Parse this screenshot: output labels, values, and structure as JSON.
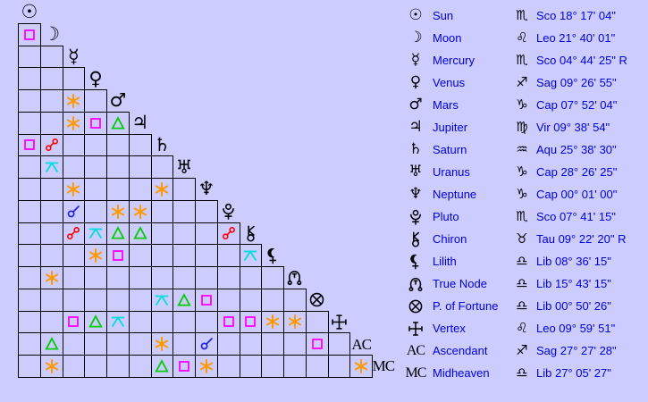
{
  "colors": {
    "background": "#ccccff",
    "grid_line": "#000000",
    "text_blue": "#0000dd",
    "glyph_black": "#000000"
  },
  "aspect_colors": {
    "conjunction": "#2222e6",
    "sextile": "#ff9900",
    "square": "#ff00ff",
    "trine": "#00cc00",
    "opposition": "#ff0000",
    "quincunx": "#00dddd"
  },
  "aspect_grid": {
    "rows": [
      {
        "planet": "Sun",
        "glyph": "sun",
        "cells": []
      },
      {
        "planet": "Moon",
        "glyph": "moon",
        "cells": [
          "square"
        ]
      },
      {
        "planet": "Mercury",
        "glyph": "mercury",
        "cells": [
          null,
          null
        ]
      },
      {
        "planet": "Venus",
        "glyph": "venus",
        "cells": [
          null,
          null,
          null
        ]
      },
      {
        "planet": "Mars",
        "glyph": "mars",
        "cells": [
          null,
          null,
          "sextile",
          null
        ]
      },
      {
        "planet": "Jupiter",
        "glyph": "jupiter",
        "cells": [
          null,
          null,
          "sextile",
          "square",
          "trine"
        ]
      },
      {
        "planet": "Saturn",
        "glyph": "saturn",
        "cells": [
          "square",
          "opposition",
          null,
          null,
          null,
          null
        ]
      },
      {
        "planet": "Uranus",
        "glyph": "uranus",
        "cells": [
          null,
          "quincunx",
          null,
          null,
          null,
          null,
          null
        ]
      },
      {
        "planet": "Neptune",
        "glyph": "neptune",
        "cells": [
          null,
          null,
          "sextile",
          null,
          null,
          null,
          "sextile",
          null
        ]
      },
      {
        "planet": "Pluto",
        "glyph": "pluto",
        "cells": [
          null,
          null,
          "conjunction",
          null,
          "sextile",
          "sextile",
          null,
          null,
          null
        ]
      },
      {
        "planet": "Chiron",
        "glyph": "chiron",
        "cells": [
          null,
          null,
          "opposition",
          "quincunx",
          "trine",
          "trine",
          null,
          null,
          null,
          "opposition"
        ]
      },
      {
        "planet": "Lilith",
        "glyph": "lilith",
        "cells": [
          null,
          null,
          null,
          "sextile",
          "square",
          null,
          null,
          null,
          null,
          null,
          "quincunx"
        ]
      },
      {
        "planet": "True Node",
        "glyph": "truenode",
        "cells": [
          null,
          "sextile",
          null,
          null,
          null,
          null,
          null,
          null,
          null,
          null,
          null,
          null
        ]
      },
      {
        "planet": "P. of Fortune",
        "glyph": "pof",
        "cells": [
          null,
          null,
          null,
          null,
          null,
          null,
          "quincunx",
          "trine",
          "square",
          null,
          null,
          null,
          null
        ]
      },
      {
        "planet": "Vertex",
        "glyph": "vertex",
        "cells": [
          null,
          null,
          "square",
          "trine",
          "quincunx",
          null,
          null,
          null,
          null,
          "square",
          "square",
          "sextile",
          "sextile",
          null
        ]
      },
      {
        "planet": "Ascendant",
        "glyph": "ac",
        "cells": [
          null,
          "trine",
          null,
          null,
          null,
          null,
          "sextile",
          null,
          "conjunction",
          null,
          null,
          null,
          null,
          "square",
          null
        ]
      },
      {
        "planet": "Midheaven",
        "glyph": "mc",
        "cells": [
          null,
          "sextile",
          null,
          null,
          null,
          null,
          "trine",
          "square",
          "sextile",
          null,
          null,
          null,
          null,
          null,
          null,
          "sextile"
        ]
      }
    ]
  },
  "positions": [
    {
      "planet": "Sun",
      "glyph": "sun",
      "sign": "Scorpio",
      "sign_glyph": "sco",
      "position": "Sco 18° 17' 04\""
    },
    {
      "planet": "Moon",
      "glyph": "moon",
      "sign": "Leo",
      "sign_glyph": "leo",
      "position": "Leo 21° 40' 01\""
    },
    {
      "planet": "Mercury",
      "glyph": "mercury",
      "sign": "Scorpio",
      "sign_glyph": "sco",
      "position": "Sco 04° 44' 25\" R"
    },
    {
      "planet": "Venus",
      "glyph": "venus",
      "sign": "Sagittarius",
      "sign_glyph": "sag",
      "position": "Sag 09° 26' 55\""
    },
    {
      "planet": "Mars",
      "glyph": "mars",
      "sign": "Capricorn",
      "sign_glyph": "cap",
      "position": "Cap 07° 52' 04\""
    },
    {
      "planet": "Jupiter",
      "glyph": "jupiter",
      "sign": "Virgo",
      "sign_glyph": "vir",
      "position": "Vir 09° 38' 54\""
    },
    {
      "planet": "Saturn",
      "glyph": "saturn",
      "sign": "Aquarius",
      "sign_glyph": "aqu",
      "position": "Aqu 25° 38' 30\""
    },
    {
      "planet": "Uranus",
      "glyph": "uranus",
      "sign": "Capricorn",
      "sign_glyph": "cap",
      "position": "Cap 28° 26' 25\""
    },
    {
      "planet": "Neptune",
      "glyph": "neptune",
      "sign": "Capricorn",
      "sign_glyph": "cap",
      "position": "Cap 00° 01' 00\""
    },
    {
      "planet": "Pluto",
      "glyph": "pluto",
      "sign": "Scorpio",
      "sign_glyph": "sco",
      "position": "Sco 07° 41' 15\""
    },
    {
      "planet": "Chiron",
      "glyph": "chiron",
      "sign": "Taurus",
      "sign_glyph": "tau",
      "position": "Tau 09° 22' 20\" R"
    },
    {
      "planet": "Lilith",
      "glyph": "lilith",
      "sign": "Libra",
      "sign_glyph": "lib",
      "position": "Lib 08° 36' 15\""
    },
    {
      "planet": "True Node",
      "glyph": "truenode",
      "sign": "Libra",
      "sign_glyph": "lib",
      "position": "Lib 15° 43' 15\""
    },
    {
      "planet": "P. of Fortune",
      "glyph": "pof",
      "sign": "Libra",
      "sign_glyph": "lib",
      "position": "Lib 00° 50' 26\""
    },
    {
      "planet": "Vertex",
      "glyph": "vertex",
      "sign": "Leo",
      "sign_glyph": "leo",
      "position": "Leo 09° 59' 51\""
    },
    {
      "planet": "Ascendant",
      "glyph": "ac",
      "sign": "Sagittarius",
      "sign_glyph": "sag",
      "position": "Sag 27° 27' 28\""
    },
    {
      "planet": "Midheaven",
      "glyph": "mc",
      "sign": "Libra",
      "sign_glyph": "lib",
      "position": "Lib 27° 05' 27\""
    }
  ]
}
